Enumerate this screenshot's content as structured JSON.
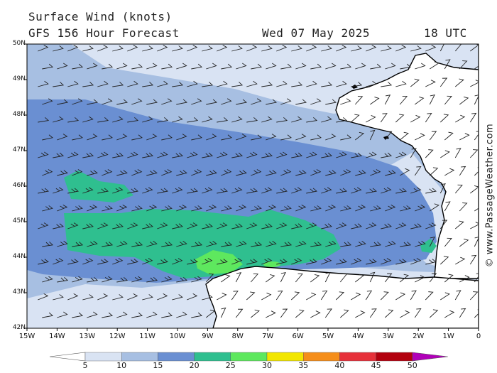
{
  "header": {
    "title": "Surface Wind (knots)",
    "model": "GFS 156 Hour Forecast",
    "date": "Wed 07 May 2025",
    "time": "18 UTC"
  },
  "credit": "© www.PassageWeather.com",
  "map": {
    "lat_labels": [
      "50N",
      "49N",
      "48N",
      "47N",
      "46N",
      "45N",
      "44N",
      "43N",
      "42N"
    ],
    "lon_labels": [
      "15W",
      "14W",
      "13W",
      "12W",
      "11W",
      "10W",
      "9W",
      "8W",
      "7W",
      "6W",
      "5W",
      "4W",
      "3W",
      "2W",
      "1W",
      "0"
    ]
  },
  "colorbar": {
    "labels": [
      "5",
      "10",
      "15",
      "20",
      "25",
      "30",
      "35",
      "40",
      "45",
      "50"
    ],
    "colors": [
      "#ffffff",
      "#d9e3f3",
      "#a7bfe2",
      "#6a8fd2",
      "#2fbf8f",
      "#5ee85e",
      "#f2e600",
      "#f58e1a",
      "#e6303a",
      "#b2000e",
      "#b000b8"
    ]
  },
  "palette": {
    "sea_5_10": "#d9e3f3",
    "sea_10_15": "#a7bfe2",
    "sea_15_20": "#6a8fd2",
    "sea_20_25": "#2fbf8f",
    "sea_25_30": "#5ee85e",
    "land": "#ffffff",
    "coast": "#000000"
  }
}
